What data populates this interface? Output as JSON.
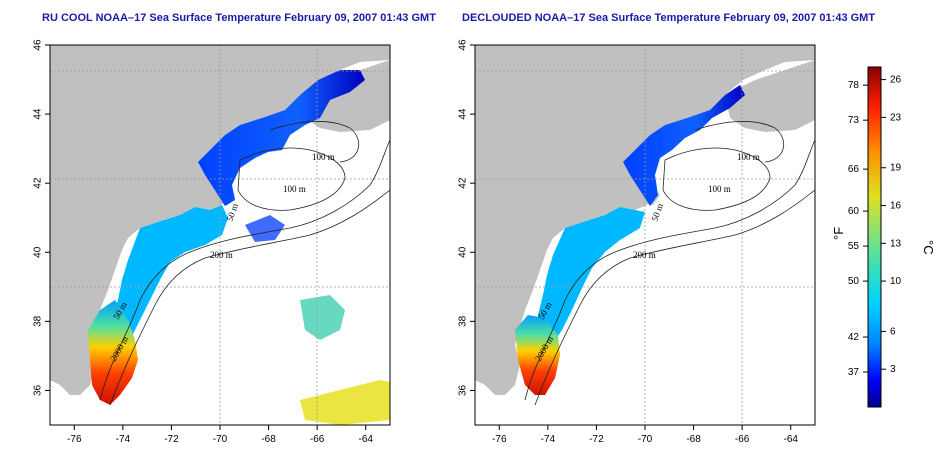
{
  "panels": [
    {
      "id": "left",
      "title": "RU COOL NOAA–17 Sea Surface Temperature February 09, 2007 01:43 GMT",
      "contour_labels": [
        "100 m",
        "100 m",
        "50 m",
        "200 m",
        "50 m",
        "2000 m"
      ]
    },
    {
      "id": "right",
      "title": "DECLOUDED NOAA–17 Sea Surface Temperature February 09, 2007 01:43 GMT",
      "contour_labels": [
        "100 m",
        "100 m",
        "50 m",
        "200 m",
        "50 m",
        "2000 m"
      ]
    }
  ],
  "axes": {
    "lon_ticks": [
      "-76",
      "-74",
      "-72",
      "-70",
      "-68",
      "-66",
      "-64"
    ],
    "lat_ticks": [
      "36",
      "38",
      "40",
      "42",
      "44",
      "46"
    ],
    "lon_range": [
      -77,
      -63
    ],
    "lat_range": [
      35,
      46
    ]
  },
  "colorbar": {
    "fahrenheit_label": "°F",
    "celsius_label": "°C",
    "fahrenheit_ticks": [
      "78",
      "73",
      "66",
      "60",
      "55",
      "50",
      "42",
      "37"
    ],
    "celsius_ticks": [
      "26",
      "23",
      "19",
      "16",
      "13",
      "10",
      "6",
      "3"
    ],
    "range_c": [
      0,
      27
    ],
    "colors": [
      "#00008b",
      "#0000ff",
      "#0080ff",
      "#00d0ff",
      "#30e0c0",
      "#80e080",
      "#e0e020",
      "#ff9000",
      "#ff2000",
      "#8b0000"
    ]
  },
  "colors": {
    "title": "#1a1aa8",
    "land": "#c0c0c0"
  }
}
